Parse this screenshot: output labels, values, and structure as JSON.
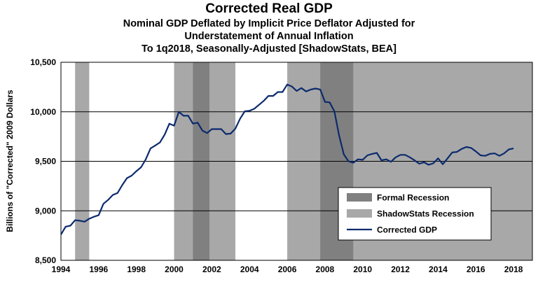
{
  "titles": {
    "main": "Corrected Real GDP",
    "line1": "Nominal GDP Deflated by Implicit Price Deflator Adjusted for",
    "line2": "Understatement of Annual Inflation",
    "line3": "To 1q2018, Seasonally-Adjusted [ShadowStats, BEA]"
  },
  "chart_data": {
    "type": "line",
    "ylabel": "Billions of \"Corrected\" 2009 Dollars",
    "xlabel": "",
    "xlim": [
      1994,
      2019
    ],
    "ylim": [
      8500,
      10500
    ],
    "xticks": [
      "1994",
      "1996",
      "1998",
      "2000",
      "2002",
      "2004",
      "2006",
      "2008",
      "2010",
      "2012",
      "2014",
      "2016",
      "2018"
    ],
    "yticks": [
      "8,500",
      "9,000",
      "9,500",
      "10,000",
      "10,500"
    ],
    "ytick_values": [
      8500,
      9000,
      9500,
      10000,
      10500
    ],
    "grid": "horizontal",
    "legend_position": "lower-right",
    "legend": [
      "Formal Recession",
      "ShadowStats Recession",
      "Corrected GDP"
    ],
    "colors": {
      "formal_recession": "#808080",
      "shadowstats_recession": "#a8a8a8",
      "line": "#0b2a6e",
      "grid": "#000000"
    },
    "shaded_regions": [
      {
        "type": "ShadowStats Recession",
        "start": 1994.75,
        "end": 1995.5
      },
      {
        "type": "ShadowStats Recession",
        "start": 2000.0,
        "end": 2003.25
      },
      {
        "type": "Formal Recession",
        "start": 2001.0,
        "end": 2001.875
      },
      {
        "type": "ShadowStats Recession",
        "start": 2006.0,
        "end": 2019.0
      },
      {
        "type": "Formal Recession",
        "start": 2007.75,
        "end": 2009.5
      }
    ],
    "series": [
      {
        "name": "Corrected GDP",
        "x": [
          1994.0,
          1994.25,
          1994.5,
          1994.75,
          1995.0,
          1995.25,
          1995.5,
          1995.75,
          1996.0,
          1996.25,
          1996.5,
          1996.75,
          1997.0,
          1997.25,
          1997.5,
          1997.75,
          1998.0,
          1998.25,
          1998.5,
          1998.75,
          1999.0,
          1999.25,
          1999.5,
          1999.75,
          2000.0,
          2000.25,
          2000.5,
          2000.75,
          2001.0,
          2001.25,
          2001.5,
          2001.75,
          2002.0,
          2002.25,
          2002.5,
          2002.75,
          2003.0,
          2003.25,
          2003.5,
          2003.75,
          2004.0,
          2004.25,
          2004.5,
          2004.75,
          2005.0,
          2005.25,
          2005.5,
          2005.75,
          2006.0,
          2006.25,
          2006.5,
          2006.75,
          2007.0,
          2007.25,
          2007.5,
          2007.75,
          2008.0,
          2008.25,
          2008.5,
          2008.75,
          2009.0,
          2009.25,
          2009.5,
          2009.75,
          2010.0,
          2010.25,
          2010.5,
          2010.75,
          2011.0,
          2011.25,
          2011.5,
          2011.75,
          2012.0,
          2012.25,
          2012.5,
          2012.75,
          2013.0,
          2013.25,
          2013.5,
          2013.75,
          2014.0,
          2014.25,
          2014.5,
          2014.75,
          2015.0,
          2015.25,
          2015.5,
          2015.75,
          2016.0,
          2016.25,
          2016.5,
          2016.75,
          2017.0,
          2017.25,
          2017.5,
          2017.75,
          2018.0
        ],
        "y": [
          8760,
          8840,
          8850,
          8905,
          8900,
          8890,
          8920,
          8940,
          8955,
          9070,
          9110,
          9160,
          9180,
          9260,
          9330,
          9355,
          9400,
          9440,
          9520,
          9630,
          9660,
          9690,
          9770,
          9880,
          9860,
          10000,
          9960,
          9960,
          9880,
          9890,
          9810,
          9785,
          9825,
          9825,
          9825,
          9775,
          9780,
          9830,
          9930,
          10005,
          10010,
          10030,
          10070,
          10110,
          10160,
          10160,
          10200,
          10200,
          10275,
          10255,
          10210,
          10240,
          10205,
          10225,
          10235,
          10225,
          10100,
          10095,
          10005,
          9760,
          9570,
          9500,
          9485,
          9520,
          9515,
          9560,
          9575,
          9585,
          9510,
          9520,
          9495,
          9540,
          9565,
          9565,
          9540,
          9510,
          9475,
          9490,
          9465,
          9480,
          9530,
          9470,
          9530,
          9590,
          9595,
          9625,
          9645,
          9635,
          9600,
          9560,
          9555,
          9575,
          9580,
          9555,
          9580,
          9620,
          9630
        ]
      }
    ]
  }
}
